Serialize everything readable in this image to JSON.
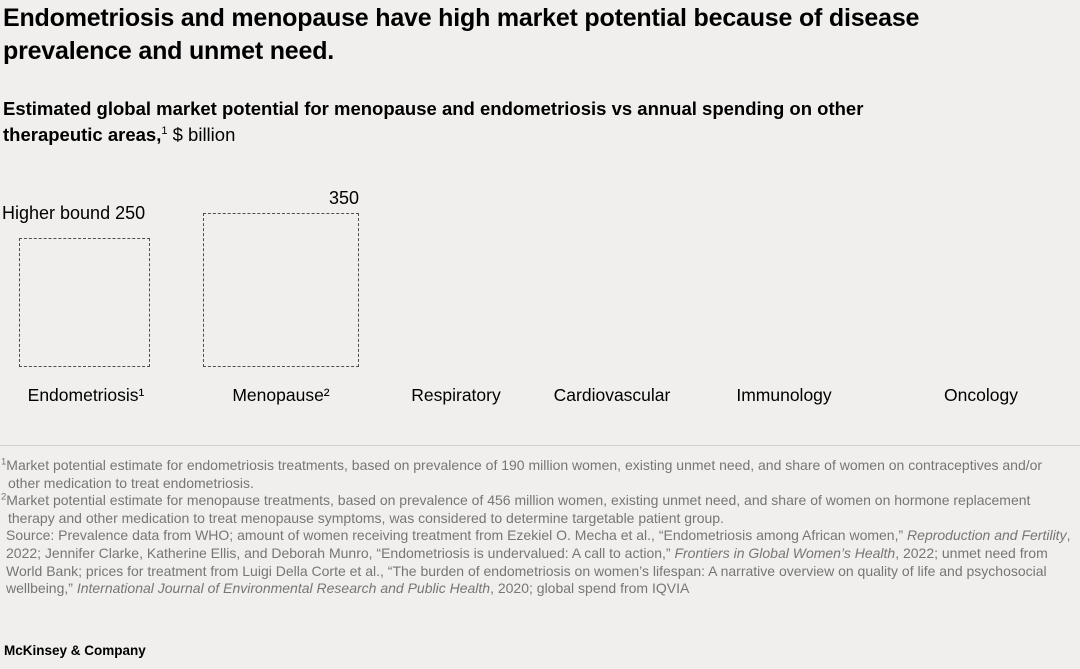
{
  "header": {
    "title": "Endometriosis and menopause have high market potential because of disease prevalence and unmet need.",
    "subtitle_bold": "Estimated global market potential for menopause and endometriosis vs annual spending on other therapeutic areas,",
    "subtitle_sup": "1",
    "subtitle_unit": " $ billion"
  },
  "chart_data": {
    "type": "bar",
    "title": "Estimated global market potential for menopause and endometriosis vs annual spending on other therapeutic areas, $ billion",
    "categories": [
      "Endometriosis¹",
      "Menopause²",
      "Respiratory",
      "Cardiovascular",
      "Immunology",
      "Oncology"
    ],
    "series": [
      {
        "name": "Estimated market potential (dashed outline, higher bound)",
        "values": [
          250,
          350,
          null,
          null,
          null,
          null
        ]
      }
    ],
    "value_labels": [
      "Higher bound 250",
      "350"
    ],
    "xlabel": "",
    "ylabel": "$ billion",
    "legend": "none",
    "grid": false,
    "style_note": "Values shown as dashed-outline rectangles for Endometriosis and Menopause only; remaining categories display labels with no visible bars",
    "colors": {
      "background": "#f0efed",
      "box_outline": "#4f4f4f",
      "text": "#000000",
      "footnote_text": "#767676"
    }
  },
  "footnotes": {
    "note1_marker": "1",
    "note1": "Market potential estimate for endometriosis treatments, based on prevalence of 190 million women, existing unmet need, and share of women on contraceptives and/or other medication to treat endometriosis.",
    "note2_marker": "2",
    "note2": "Market potential estimate for menopause treatments, based on prevalence of 456 million women, existing unmet need, and share of women on hormone replacement therapy and other medication to treat menopause symptoms, was considered to determine targetable patient group.",
    "source_segments": [
      {
        "text": "Source: Prevalence data from WHO; amount of women receiving treatment from Ezekiel O. Mecha et al., “Endometriosis among African women,” ",
        "italic": false
      },
      {
        "text": "Reproduction and Fertility",
        "italic": true
      },
      {
        "text": ", 2022; Jennifer Clarke, Katherine Ellis, and Deborah Munro, “Endometriosis is undervalued: A call to action,” ",
        "italic": false
      },
      {
        "text": "Frontiers in Global Women’s Health",
        "italic": true
      },
      {
        "text": ", 2022; unmet need from World Bank; prices for treatment from Luigi Della Corte et al., “The burden of endometriosis on women’s lifespan: A narrative overview on quality of life and psychosocial wellbeing,” ",
        "italic": false
      },
      {
        "text": "International Journal of Environmental Research and Public Health",
        "italic": true
      },
      {
        "text": ", 2020; global spend from IQVIA",
        "italic": false
      }
    ]
  },
  "footer": {
    "brand": "McKinsey & Company"
  }
}
